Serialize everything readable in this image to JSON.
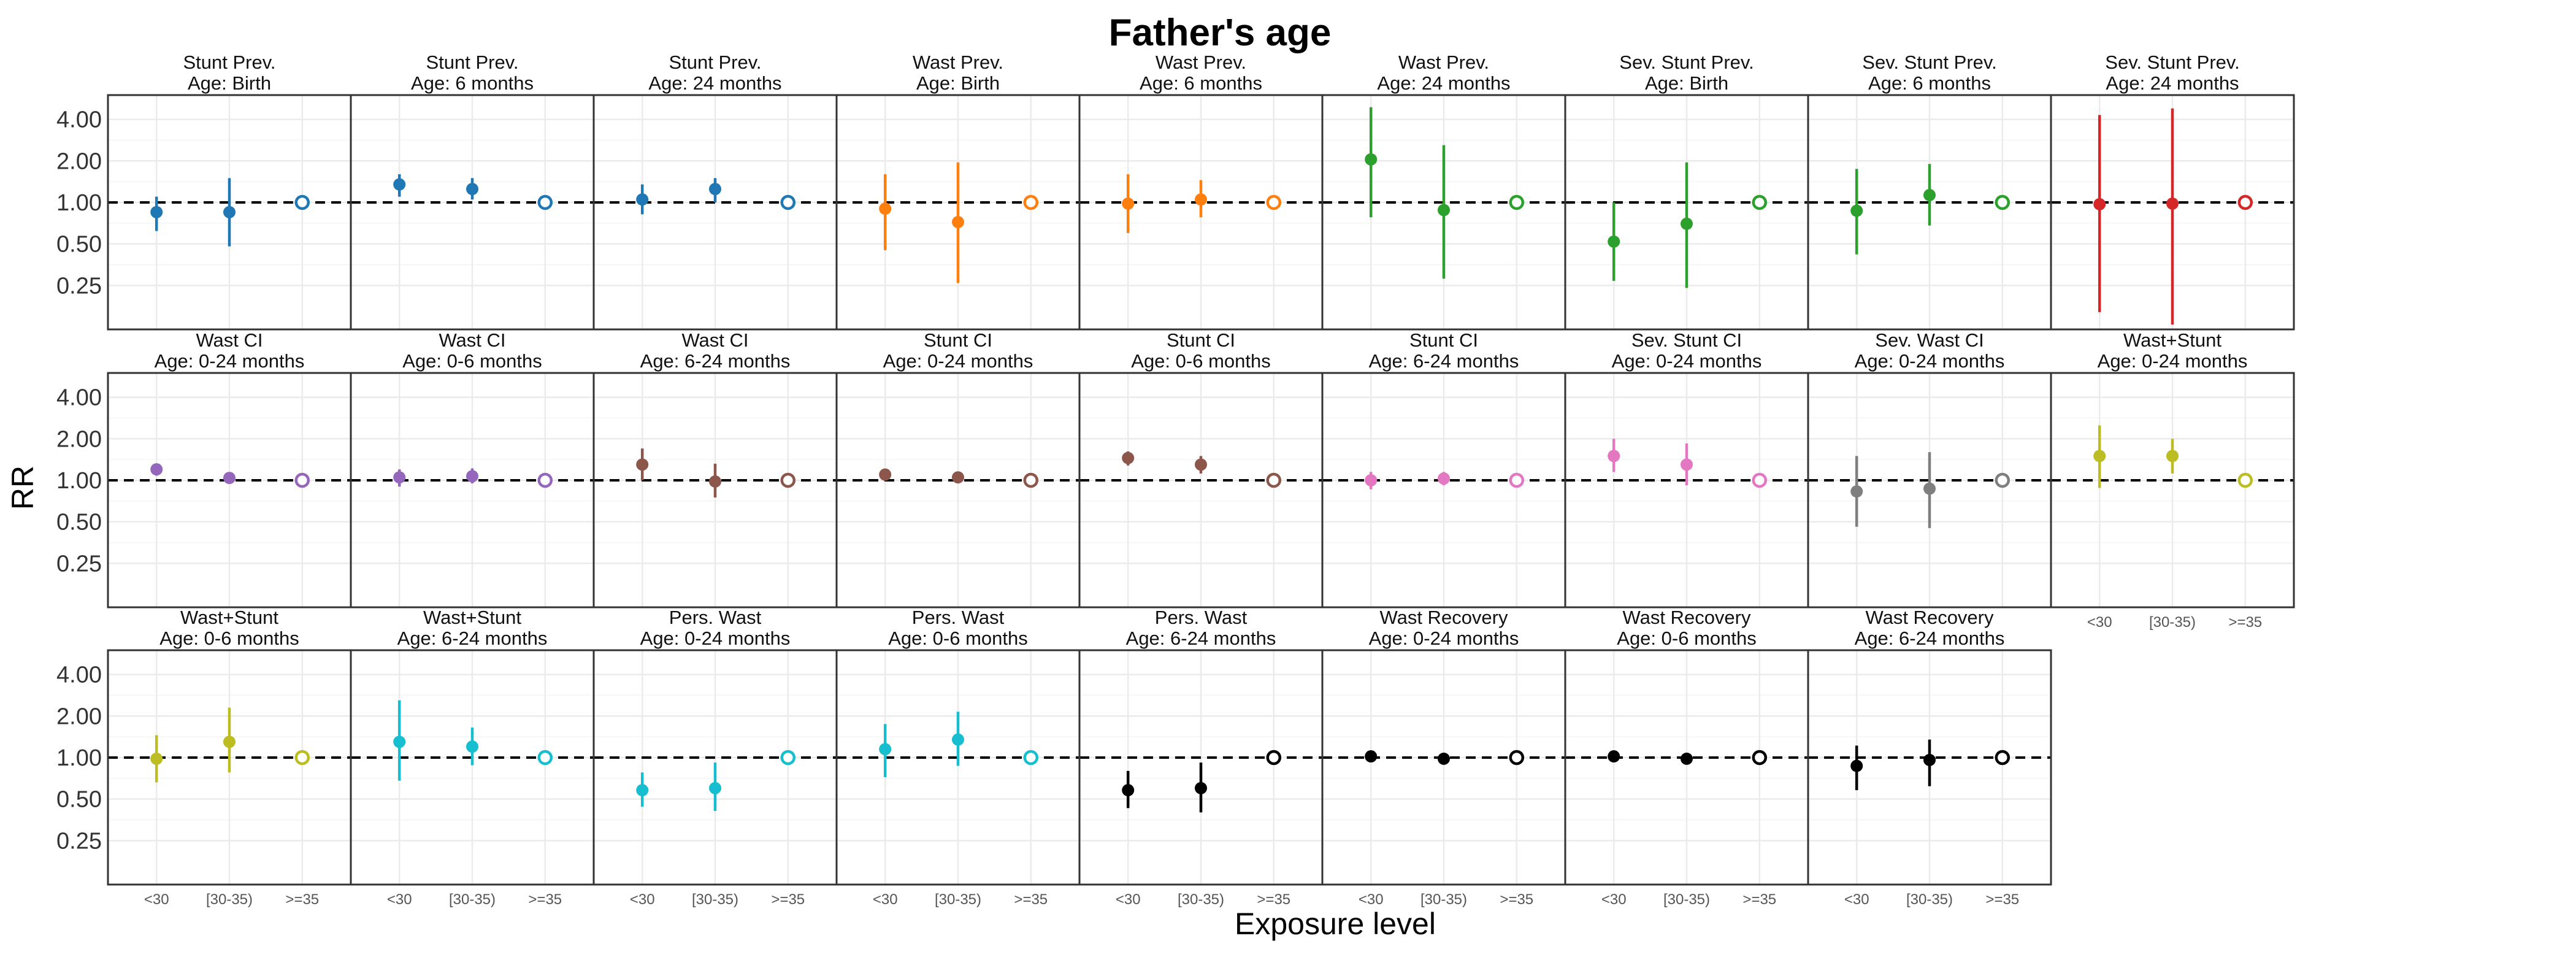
{
  "chart_data": {
    "type": "scatter",
    "title": "Father's age",
    "xlabel": "Exposure level",
    "ylabel": "RR",
    "y_scale": "log",
    "y_ticks": [
      "0.25",
      "0.50",
      "1.00",
      "2.00",
      "4.00"
    ],
    "y_tick_values": [
      0.25,
      0.5,
      1,
      2,
      4
    ],
    "ylim": [
      0.12,
      6
    ],
    "reference_line": 1,
    "categories": [
      "<30",
      "[30-35)",
      ">=35"
    ],
    "grid": true,
    "facets": [
      {
        "line1": "Stunt Prev.",
        "line2": "Age: Birth",
        "color": "#1f77b4",
        "rr": [
          0.85,
          0.85,
          1.0
        ],
        "lower": [
          0.62,
          0.48,
          1.0
        ],
        "upper": [
          1.1,
          1.5,
          1.0
        ]
      },
      {
        "line1": "Stunt Prev.",
        "line2": "Age: 6 months",
        "color": "#1f77b4",
        "rr": [
          1.35,
          1.25,
          1.0
        ],
        "lower": [
          1.1,
          1.05,
          1.0
        ],
        "upper": [
          1.6,
          1.5,
          1.0
        ]
      },
      {
        "line1": "Stunt Prev.",
        "line2": "Age: 24 months",
        "color": "#1f77b4",
        "rr": [
          1.05,
          1.25,
          1.0
        ],
        "lower": [
          0.82,
          1.0,
          1.0
        ],
        "upper": [
          1.35,
          1.5,
          1.0
        ]
      },
      {
        "line1": "Wast Prev.",
        "line2": "Age: Birth",
        "color": "#ff7f0e",
        "rr": [
          0.9,
          0.72,
          1.0
        ],
        "lower": [
          0.45,
          0.26,
          1.0
        ],
        "upper": [
          1.6,
          1.95,
          1.0
        ]
      },
      {
        "line1": "Wast Prev.",
        "line2": "Age: 6 months",
        "color": "#ff7f0e",
        "rr": [
          0.98,
          1.05,
          1.0
        ],
        "lower": [
          0.6,
          0.78,
          1.0
        ],
        "upper": [
          1.6,
          1.45,
          1.0
        ]
      },
      {
        "line1": "Wast Prev.",
        "line2": "Age: 24 months",
        "color": "#2ca02c",
        "rr": [
          2.05,
          0.88,
          1.0
        ],
        "lower": [
          0.78,
          0.28,
          1.0
        ],
        "upper": [
          4.9,
          2.6,
          1.0
        ]
      },
      {
        "line1": "Sev. Stunt Prev.",
        "line2": "Age: Birth",
        "color": "#2ca02c",
        "rr": [
          0.52,
          0.7,
          1.0
        ],
        "lower": [
          0.27,
          0.24,
          1.0
        ],
        "upper": [
          1.0,
          1.95,
          1.0
        ]
      },
      {
        "line1": "Sev. Stunt Prev.",
        "line2": "Age: 6 months",
        "color": "#2ca02c",
        "rr": [
          0.87,
          1.13,
          1.0
        ],
        "lower": [
          0.42,
          0.68,
          1.0
        ],
        "upper": [
          1.75,
          1.9,
          1.0
        ]
      },
      {
        "line1": "Sev. Stunt Prev.",
        "line2": "Age: 24 months",
        "color": "#d62728",
        "rr": [
          0.97,
          0.98,
          1.0
        ],
        "lower": [
          0.16,
          0.13,
          1.0
        ],
        "upper": [
          4.3,
          4.8,
          1.0
        ]
      },
      {
        "line1": "Wast CI",
        "line2": "Age: 0-24 months",
        "color": "#9467bd",
        "rr": [
          1.2,
          1.04,
          1.0
        ],
        "lower": [
          1.08,
          0.96,
          1.0
        ],
        "upper": [
          1.3,
          1.12,
          1.0
        ]
      },
      {
        "line1": "Wast CI",
        "line2": "Age: 0-6 months",
        "color": "#9467bd",
        "rr": [
          1.05,
          1.07,
          1.0
        ],
        "lower": [
          0.9,
          0.95,
          1.0
        ],
        "upper": [
          1.2,
          1.22,
          1.0
        ]
      },
      {
        "line1": "Wast CI",
        "line2": "Age: 6-24 months",
        "color": "#8c564b",
        "rr": [
          1.3,
          0.98,
          1.0
        ],
        "lower": [
          1.0,
          0.75,
          1.0
        ],
        "upper": [
          1.7,
          1.32,
          1.0
        ]
      },
      {
        "line1": "Stunt CI",
        "line2": "Age: 0-24 months",
        "color": "#8c564b",
        "rr": [
          1.1,
          1.05,
          1.0
        ],
        "lower": [
          1.0,
          0.98,
          1.0
        ],
        "upper": [
          1.2,
          1.12,
          1.0
        ]
      },
      {
        "line1": "Stunt CI",
        "line2": "Age: 0-6 months",
        "color": "#8c564b",
        "rr": [
          1.45,
          1.3,
          1.0
        ],
        "lower": [
          1.28,
          1.12,
          1.0
        ],
        "upper": [
          1.62,
          1.5,
          1.0
        ]
      },
      {
        "line1": "Stunt CI",
        "line2": "Age: 6-24 months",
        "color": "#e377c2",
        "rr": [
          1.0,
          1.03,
          1.0
        ],
        "lower": [
          0.86,
          0.92,
          1.0
        ],
        "upper": [
          1.15,
          1.15,
          1.0
        ]
      },
      {
        "line1": "Sev. Stunt CI",
        "line2": "Age: 0-24 months",
        "color": "#e377c2",
        "rr": [
          1.5,
          1.3,
          1.0
        ],
        "lower": [
          1.15,
          0.92,
          1.0
        ],
        "upper": [
          2.0,
          1.85,
          1.0
        ]
      },
      {
        "line1": "Sev. Wast CI",
        "line2": "Age: 0-24 months",
        "color": "#7f7f7f",
        "rr": [
          0.83,
          0.87,
          1.0
        ],
        "lower": [
          0.46,
          0.45,
          1.0
        ],
        "upper": [
          1.5,
          1.6,
          1.0
        ]
      },
      {
        "line1": "Wast+Stunt",
        "line2": "Age: 0-24 months",
        "color": "#bcbd22",
        "rr": [
          1.5,
          1.5,
          1.0
        ],
        "lower": [
          0.88,
          1.12,
          1.0
        ],
        "upper": [
          2.5,
          2.0,
          1.0
        ]
      },
      {
        "line1": "Wast+Stunt",
        "line2": "Age: 0-6 months",
        "color": "#bcbd22",
        "rr": [
          0.98,
          1.3,
          1.0
        ],
        "lower": [
          0.66,
          0.78,
          1.0
        ],
        "upper": [
          1.45,
          2.3,
          1.0
        ]
      },
      {
        "line1": "Wast+Stunt",
        "line2": "Age: 6-24 months",
        "color": "#17becf",
        "rr": [
          1.3,
          1.2,
          1.0
        ],
        "lower": [
          0.68,
          0.88,
          1.0
        ],
        "upper": [
          2.6,
          1.65,
          1.0
        ]
      },
      {
        "line1": "Pers. Wast",
        "line2": "Age: 0-24 months",
        "color": "#17becf",
        "rr": [
          0.58,
          0.6,
          1.0
        ],
        "lower": [
          0.44,
          0.41,
          1.0
        ],
        "upper": [
          0.78,
          0.92,
          1.0
        ]
      },
      {
        "line1": "Pers. Wast",
        "line2": "Age: 0-6 months",
        "color": "#17becf",
        "rr": [
          1.15,
          1.35,
          1.0
        ],
        "lower": [
          0.72,
          0.87,
          1.0
        ],
        "upper": [
          1.75,
          2.15,
          1.0
        ]
      },
      {
        "line1": "Pers. Wast",
        "line2": "Age: 6-24 months",
        "color": "#000000",
        "rr": [
          0.58,
          0.6,
          1.0
        ],
        "lower": [
          0.43,
          0.4,
          1.0
        ],
        "upper": [
          0.8,
          0.92,
          1.0
        ]
      },
      {
        "line1": "Wast Recovery",
        "line2": "Age: 0-24 months",
        "color": "#000000",
        "rr": [
          1.02,
          0.98,
          1.0
        ],
        "lower": [
          0.99,
          0.96,
          1.0
        ],
        "upper": [
          1.05,
          1.0,
          1.0
        ]
      },
      {
        "line1": "Wast Recovery",
        "line2": "Age: 0-6 months",
        "color": "#000000",
        "rr": [
          1.02,
          0.98,
          1.0
        ],
        "lower": [
          0.99,
          0.96,
          1.0
        ],
        "upper": [
          1.05,
          1.0,
          1.0
        ]
      },
      {
        "line1": "Wast Recovery",
        "line2": "Age: 6-24 months",
        "color": "#000000",
        "rr": [
          0.87,
          0.96,
          1.0
        ],
        "lower": [
          0.58,
          0.62,
          1.0
        ],
        "upper": [
          1.22,
          1.35,
          1.0
        ]
      }
    ]
  }
}
